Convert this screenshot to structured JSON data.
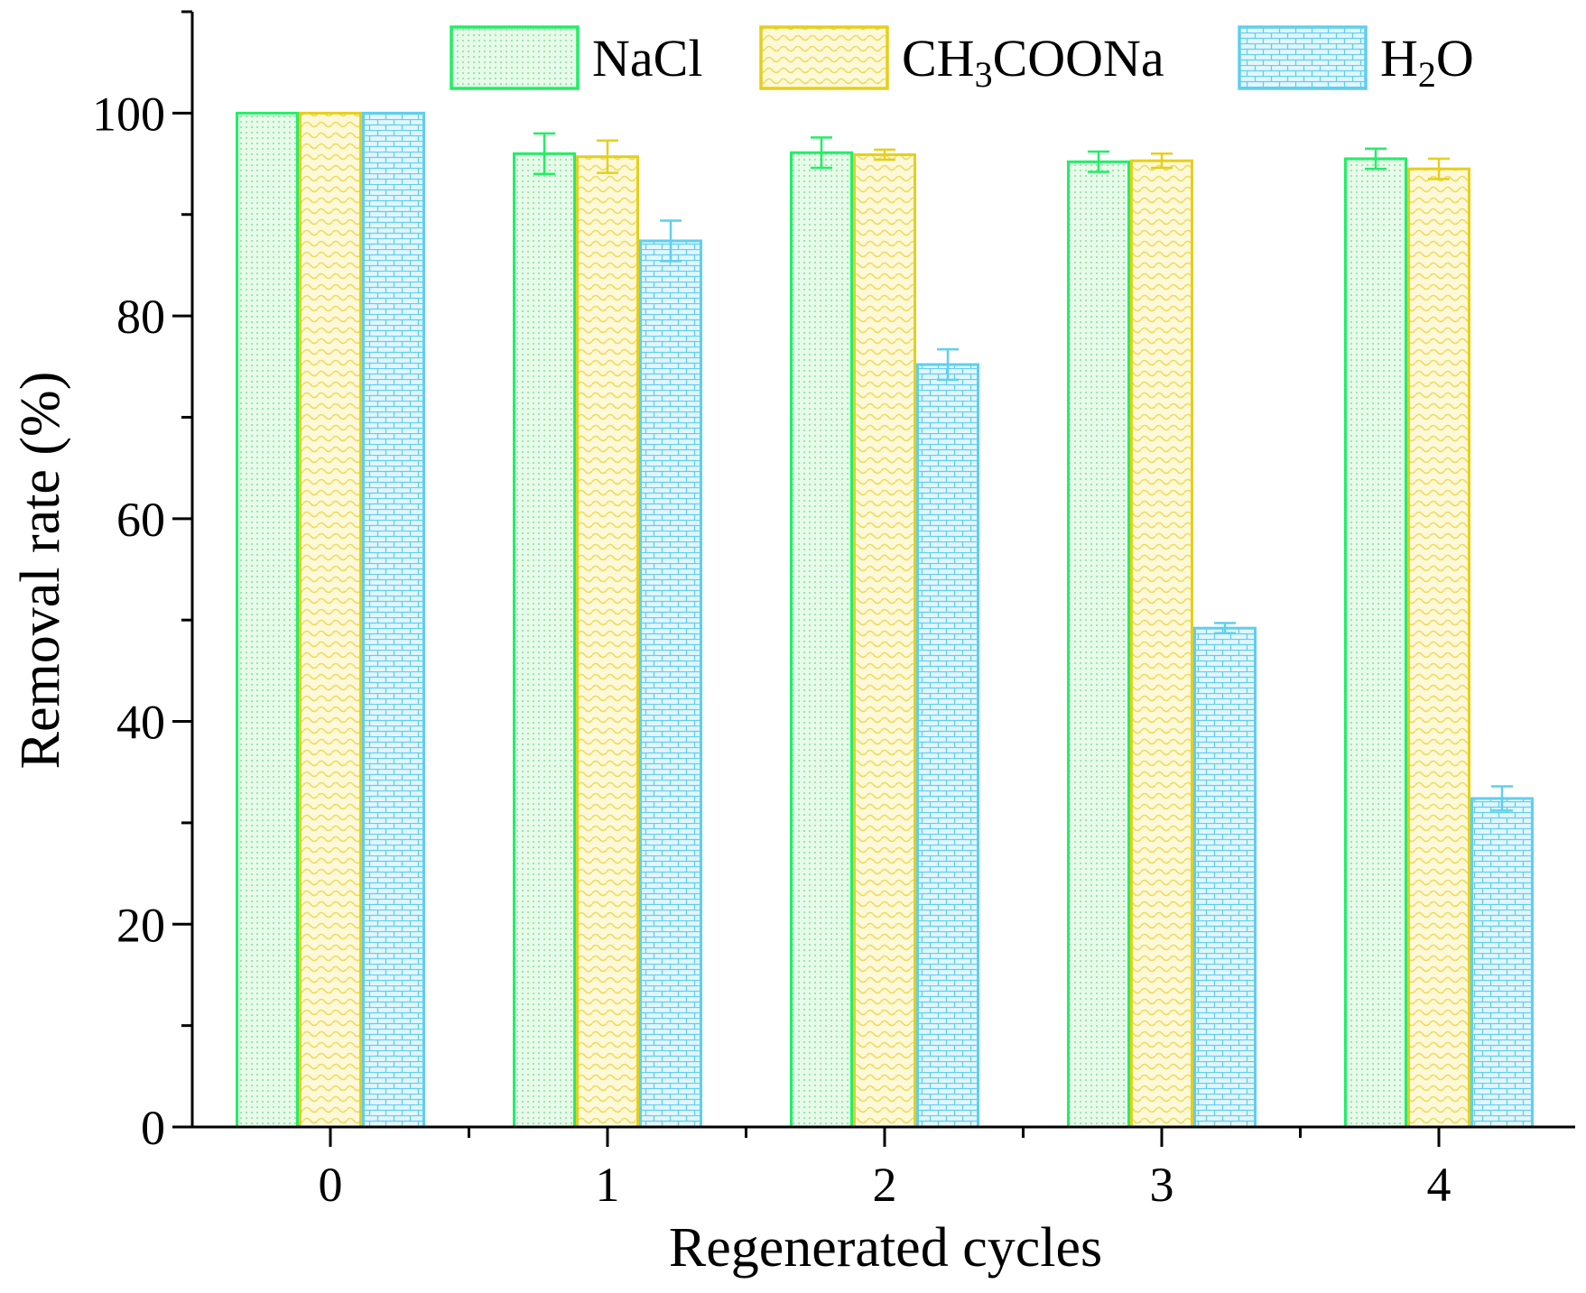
{
  "chart_data": {
    "type": "bar",
    "xlabel": "Regenerated cycles",
    "ylabel": "Removal rate (%)",
    "categories": [
      "0",
      "1",
      "2",
      "3",
      "4"
    ],
    "ylim": [
      0,
      110
    ],
    "yticks": [
      0,
      20,
      40,
      60,
      80,
      100
    ],
    "legend_position": "top",
    "series": [
      {
        "name": "NaCl",
        "legend_parts": [
          {
            "text": "NaCl",
            "sub": false
          }
        ],
        "color": "#22ee66",
        "fill": "#e8fbea",
        "pattern": "dots",
        "values": [
          100,
          96.0,
          96.1,
          95.2,
          95.5
        ],
        "errors": [
          0,
          2.0,
          1.5,
          1.0,
          1.0
        ]
      },
      {
        "name": "CH3COONa",
        "legend_parts": [
          {
            "text": "CH",
            "sub": false
          },
          {
            "text": "3",
            "sub": true
          },
          {
            "text": "COONa",
            "sub": false
          }
        ],
        "color": "#e6cf1a",
        "fill": "#fdf8d8",
        "pattern": "wave",
        "values": [
          100,
          95.7,
          95.9,
          95.3,
          94.5
        ],
        "errors": [
          0,
          1.6,
          0.5,
          0.7,
          1.0
        ]
      },
      {
        "name": "H2O",
        "legend_parts": [
          {
            "text": "H",
            "sub": false
          },
          {
            "text": "2",
            "sub": true
          },
          {
            "text": "O",
            "sub": false
          }
        ],
        "color": "#5fcfee",
        "fill": "#d4f2fb",
        "pattern": "brick",
        "values": [
          100,
          87.4,
          75.2,
          49.2,
          32.4
        ],
        "errors": [
          0,
          2.0,
          1.5,
          0.5,
          1.2
        ]
      }
    ]
  }
}
